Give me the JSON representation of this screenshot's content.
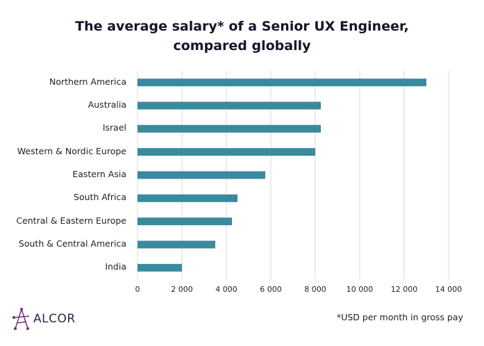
{
  "chart_data": {
    "type": "bar",
    "orientation": "horizontal",
    "title": "The average salary* of a Senior UX Engineer, compared globally",
    "title_lines": [
      "The average salary* of a Senior UX Engineer,",
      "compared globally"
    ],
    "categories": [
      "Northern America",
      "Australia",
      "Israel",
      "Western & Nordic Europe",
      "Eastern Asia",
      "South Africa",
      "Central & Eastern Europe",
      "South & Central America",
      "India"
    ],
    "values": [
      13000,
      8250,
      8250,
      8000,
      5750,
      4500,
      4250,
      3500,
      2000
    ],
    "xlim": [
      0,
      14000
    ],
    "xticks": [
      0,
      2000,
      4000,
      6000,
      8000,
      10000,
      12000,
      14000
    ],
    "xtick_labels": [
      "0",
      "2 000",
      "4 000",
      "6 000",
      "8 000",
      "10 000",
      "12 000",
      "14 000"
    ],
    "grid": "vertical",
    "bar_color": "#3a8a9e",
    "footnote": "*USD per month in gross pay"
  },
  "logo": {
    "text": "ALCOR",
    "color": "#7a2d7a"
  }
}
